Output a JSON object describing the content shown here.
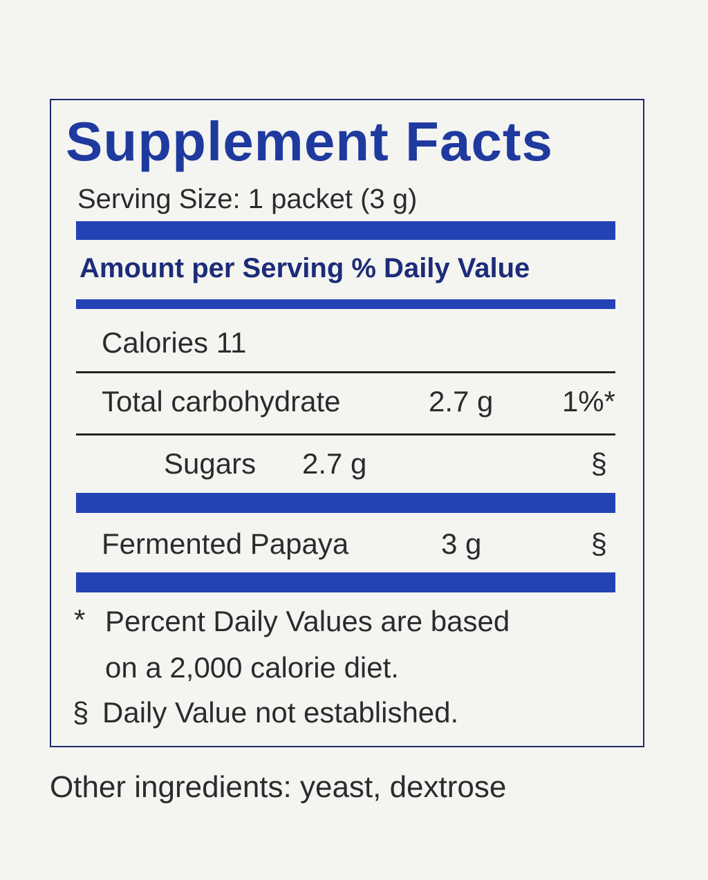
{
  "title": "Supplement Facts",
  "serving_size": "Serving Size: 1 packet (3 g)",
  "header": "Amount per Serving % Daily Value",
  "rows": [
    {
      "name": "Calories 11"
    },
    {
      "name": "Total carbohydrate",
      "amount": "2.7 g",
      "dv": "1%*"
    },
    {
      "name": "Sugars",
      "amount": "2.7 g",
      "dv": "§"
    },
    {
      "name": "Fermented Papaya",
      "amount": "3 g",
      "dv": "§"
    }
  ],
  "footnotes": [
    {
      "mark": "*",
      "text": "Percent Daily Values are based",
      "text2": "on a 2,000 calorie diet."
    },
    {
      "mark": "§",
      "text": "Daily Value not established."
    }
  ],
  "other_ingredients": "Other ingredients: yeast, dextrose"
}
